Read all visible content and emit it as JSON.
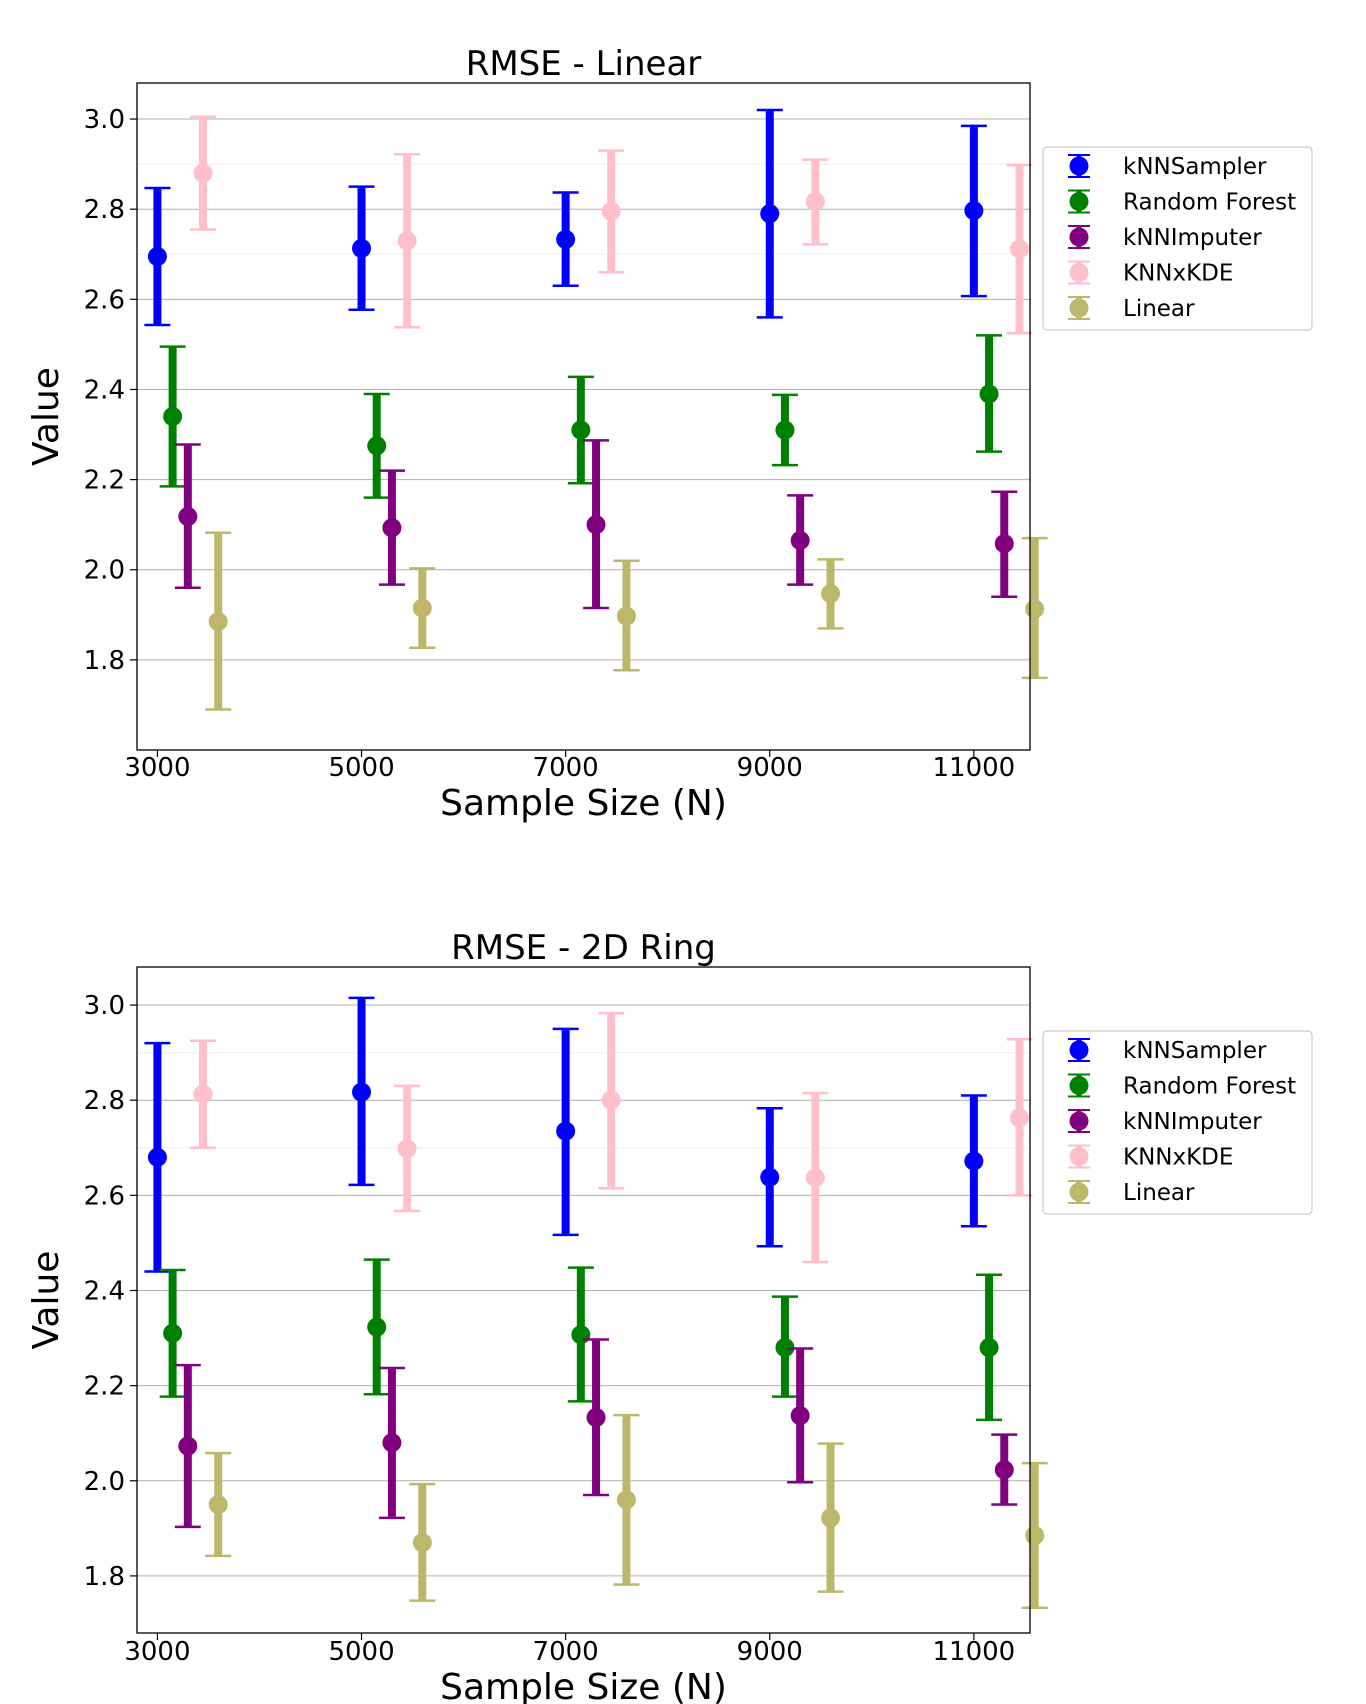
{
  "chart_data": [
    {
      "type": "errorbar",
      "title": "RMSE - Linear",
      "xlabel": "Sample Size (N)",
      "ylabel": "Value",
      "categories": [
        "3000",
        "5000",
        "7000",
        "9000",
        "11000"
      ],
      "xlim": [
        2800,
        11550
      ],
      "ylim": [
        1.6,
        3.08
      ],
      "yticks": [
        "1.8",
        "2.0",
        "2.2",
        "2.4",
        "2.6",
        "2.8",
        "3.0"
      ],
      "grid": "horizontal",
      "legend_position": "right-top",
      "series": [
        {
          "name": "kNNSampler",
          "color": "#0000ff",
          "offset": 0,
          "values": [
            2.695,
            2.713,
            2.733,
            2.79,
            2.797
          ],
          "lower": [
            2.543,
            2.577,
            2.63,
            2.56,
            2.607
          ],
          "upper": [
            2.847,
            2.85,
            2.837,
            3.02,
            2.985
          ]
        },
        {
          "name": "Random Forest",
          "color": "#008000",
          "offset": 1,
          "values": [
            2.34,
            2.275,
            2.31,
            2.31,
            2.39
          ],
          "lower": [
            2.185,
            2.16,
            2.192,
            2.232,
            2.262
          ],
          "upper": [
            2.495,
            2.39,
            2.428,
            2.388,
            2.52
          ]
        },
        {
          "name": "kNNImputer",
          "color": "#800080",
          "offset": 2,
          "values": [
            2.118,
            2.093,
            2.1,
            2.065,
            2.058
          ],
          "lower": [
            1.96,
            1.967,
            1.915,
            1.967,
            1.94
          ],
          "upper": [
            2.278,
            2.22,
            2.287,
            2.165,
            2.173
          ]
        },
        {
          "name": "KNNxKDE",
          "color": "#ffc0cb",
          "offset": 3,
          "values": [
            2.88,
            2.73,
            2.795,
            2.817,
            2.712
          ],
          "lower": [
            2.755,
            2.538,
            2.66,
            2.722,
            2.525
          ],
          "upper": [
            3.005,
            2.922,
            2.93,
            2.91,
            2.898
          ]
        },
        {
          "name": "Linear",
          "color": "#bdb76b",
          "offset": 4,
          "values": [
            1.885,
            1.915,
            1.897,
            1.947,
            1.913
          ],
          "lower": [
            1.69,
            1.827,
            1.777,
            1.87,
            1.76
          ],
          "upper": [
            2.082,
            2.003,
            2.02,
            2.023,
            2.07
          ]
        }
      ]
    },
    {
      "type": "errorbar",
      "title": "RMSE - 2D Ring",
      "xlabel": "Sample Size (N)",
      "ylabel": "Value",
      "categories": [
        "3000",
        "5000",
        "7000",
        "9000",
        "11000"
      ],
      "xlim": [
        2800,
        11550
      ],
      "ylim": [
        1.68,
        3.08
      ],
      "yticks": [
        "1.8",
        "2.0",
        "2.2",
        "2.4",
        "2.6",
        "2.8",
        "3.0"
      ],
      "grid": "horizontal",
      "legend_position": "right-top",
      "series": [
        {
          "name": "kNNSampler",
          "color": "#0000ff",
          "offset": 0,
          "values": [
            2.68,
            2.817,
            2.735,
            2.638,
            2.672
          ],
          "lower": [
            2.44,
            2.622,
            2.517,
            2.493,
            2.535
          ],
          "upper": [
            2.92,
            3.015,
            2.95,
            2.783,
            2.81
          ]
        },
        {
          "name": "Random Forest",
          "color": "#008000",
          "offset": 1,
          "values": [
            2.31,
            2.323,
            2.307,
            2.28,
            2.28
          ],
          "lower": [
            2.177,
            2.182,
            2.167,
            2.177,
            2.128
          ],
          "upper": [
            2.443,
            2.465,
            2.448,
            2.387,
            2.433
          ]
        },
        {
          "name": "kNNImputer",
          "color": "#800080",
          "offset": 2,
          "values": [
            2.073,
            2.08,
            2.133,
            2.137,
            2.023
          ],
          "lower": [
            1.903,
            1.922,
            1.97,
            1.997,
            1.95
          ],
          "upper": [
            2.243,
            2.237,
            2.297,
            2.278,
            2.097
          ]
        },
        {
          "name": "KNNxKDE",
          "color": "#ffc0cb",
          "offset": 3,
          "values": [
            2.813,
            2.698,
            2.8,
            2.637,
            2.763
          ],
          "lower": [
            2.7,
            2.567,
            2.615,
            2.46,
            2.6
          ],
          "upper": [
            2.925,
            2.83,
            2.983,
            2.815,
            2.928
          ]
        },
        {
          "name": "Linear",
          "color": "#bdb76b",
          "offset": 4,
          "values": [
            1.95,
            1.87,
            1.96,
            1.922,
            1.885
          ],
          "lower": [
            1.842,
            1.748,
            1.782,
            1.767,
            1.733
          ],
          "upper": [
            2.058,
            1.993,
            2.138,
            2.078,
            2.037
          ]
        }
      ]
    }
  ]
}
